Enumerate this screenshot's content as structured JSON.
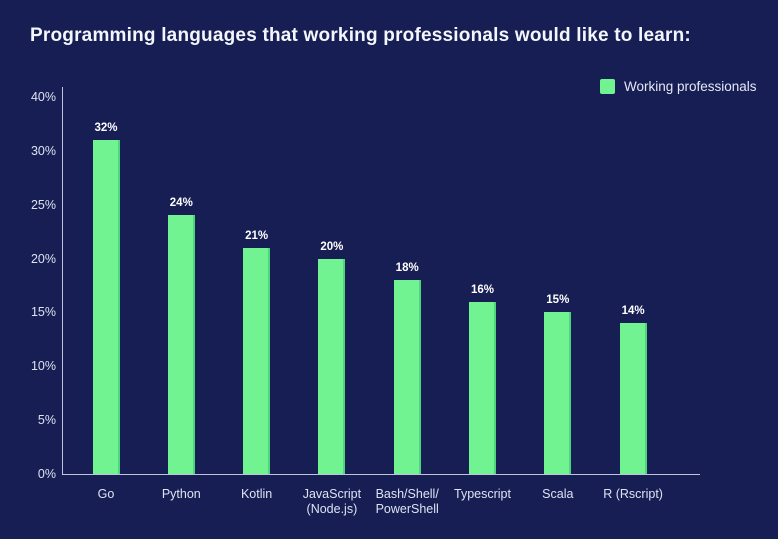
{
  "title": "Programming languages that working professionals would like to learn:",
  "legend": {
    "label": "Working professionals",
    "swatch_color": "#72F392"
  },
  "colors": {
    "background": "#171E53",
    "bar_fill": "#72F392",
    "bar_edge": "#4FD67C",
    "axis_line": "#DBE2F3",
    "title_text": "#F3F6FC",
    "tick_text": "#DDE3F3",
    "value_text": "#FFFFFF"
  },
  "chart_data": {
    "type": "bar",
    "title": "Programming languages that working professionals would like to learn:",
    "series_name": "Working professionals",
    "categories": [
      "Go",
      "Python",
      "Kotlin",
      "JavaScript\n(Node.js)",
      "Bash/Shell/\nPowerShell",
      "Typescript",
      "Scala",
      "R (Rscript)"
    ],
    "values": [
      32,
      24,
      21,
      20,
      18,
      16,
      15,
      14
    ],
    "value_labels": [
      "32%",
      "24%",
      "21%",
      "20%",
      "18%",
      "16%",
      "15%",
      "14%"
    ],
    "xlabel": "",
    "ylabel": "",
    "ytick_values": [
      0,
      5,
      10,
      15,
      20,
      25,
      30,
      40
    ],
    "ytick_labels": [
      "0%",
      "5%",
      "10%",
      "15%",
      "20%",
      "25%",
      "30%",
      "40%"
    ],
    "ylim_note": "tick labels evenly spaced; top interval jumps 30%→40%",
    "grid": false,
    "legend_position": "top-right",
    "bar_color": "#72F392"
  }
}
